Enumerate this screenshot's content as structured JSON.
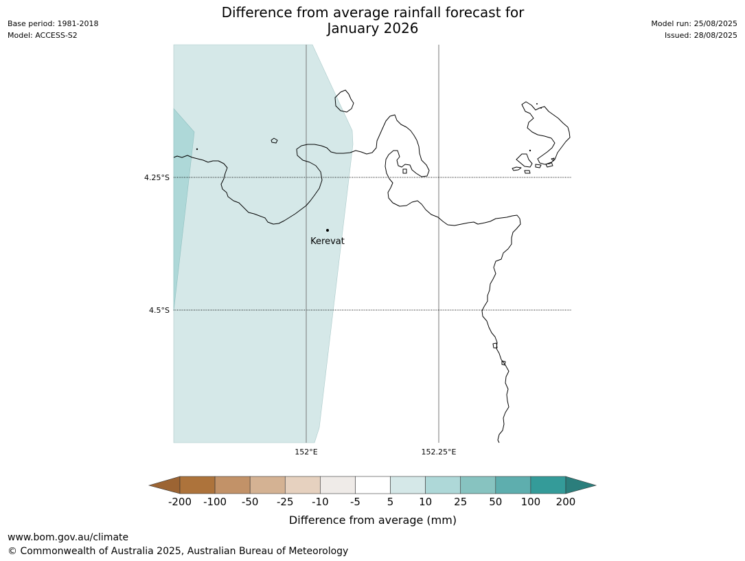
{
  "header": {
    "title_line1": "Difference from average rainfall forecast for",
    "title_line2": "January 2026",
    "base_period": "Base period: 1981-2018",
    "model": "Model: ACCESS-S2",
    "model_run": "Model run: 25/08/2025",
    "issued": "Issued: 28/08/2025"
  },
  "map": {
    "lat_labels": [
      "4.25°S",
      "4.5°S"
    ],
    "lon_labels": [
      "152°E",
      "152.25°E"
    ],
    "place": {
      "name": "Kerevat"
    },
    "coastline_color": "#000000"
  },
  "colorbar": {
    "ticks": [
      "-200",
      "-100",
      "-50",
      "-25",
      "-10",
      "-5",
      "5",
      "10",
      "25",
      "50",
      "100",
      "200"
    ],
    "colors": {
      "below_min": "#9c6433",
      "bins": [
        "#ad733b",
        "#c29268",
        "#d4b293",
        "#e6d1bf",
        "#efebe8",
        "#ffffff",
        "#d5e8e8",
        "#aed8d8",
        "#87c3c0",
        "#5eaeae",
        "#349b99"
      ],
      "above_max": "#2b7e7c"
    },
    "label": "Difference from average (mm)"
  },
  "footer": {
    "url": "www.bom.gov.au/climate",
    "copyright": "© Commonwealth of Australia 2025, Australian Bureau of Meteorology"
  }
}
